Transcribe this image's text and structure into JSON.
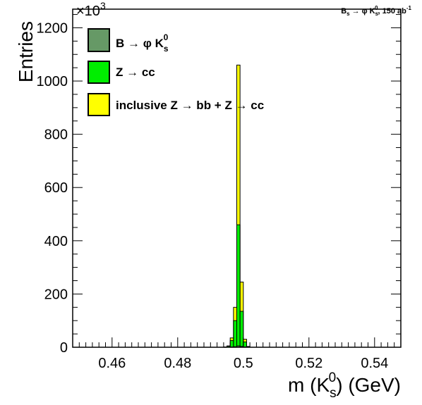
{
  "chart_data": {
    "type": "bar",
    "title": "B_s → φ K_s^0, 150 ab^-1",
    "xlabel": "m (K_s^0) (GeV)",
    "ylabel": "Entries",
    "y_exponent_label": "×10^3",
    "xlim": [
      0.448,
      0.548
    ],
    "ylim": [
      0,
      1270
    ],
    "x_ticks": [
      0.46,
      0.48,
      0.5,
      0.52,
      0.54
    ],
    "x_tick_labels": [
      "0.46",
      "0.48",
      "0.5",
      "0.52",
      "0.54"
    ],
    "y_ticks": [
      0,
      200,
      400,
      600,
      800,
      1000,
      1200
    ],
    "y_tick_labels": [
      "0",
      "200",
      "400",
      "600",
      "800",
      "1000",
      "1200"
    ],
    "y_units_note": "Entries in thousands (×10^3), stacked histograms",
    "bin_edges": [
      0.494,
      0.495,
      0.496,
      0.497,
      0.498,
      0.499,
      0.5,
      0.501,
      0.502
    ],
    "series": [
      {
        "name": "inclusive Z → bb + Z → cc",
        "color": "#ffff00",
        "values": [
          1,
          5,
          35,
          150,
          1060,
          245,
          30,
          3
        ]
      },
      {
        "name": "Z → cc",
        "color": "#00ee00",
        "values": [
          1,
          4,
          25,
          100,
          460,
          135,
          20,
          2
        ]
      },
      {
        "name": "B → φ K_s^0",
        "color": "#669966",
        "values": [
          0,
          0,
          1,
          2,
          5,
          3,
          1,
          0
        ]
      }
    ],
    "legend_position": "top-left",
    "grid": false
  }
}
